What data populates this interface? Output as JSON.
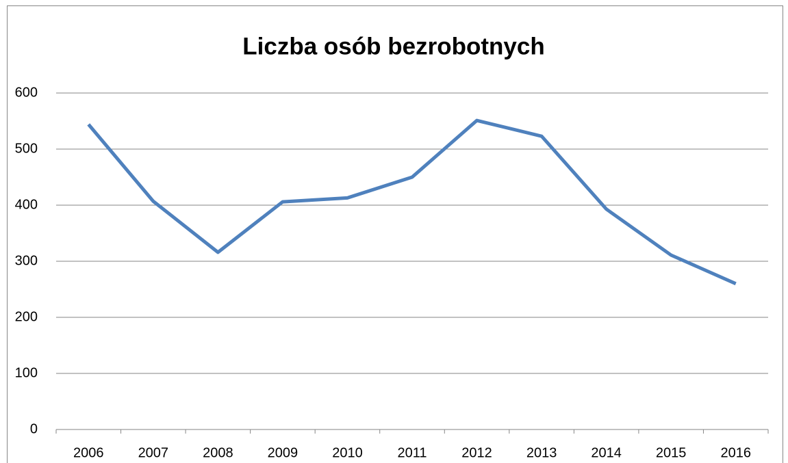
{
  "chart_data": {
    "type": "line",
    "title": "Liczba osób bezrobotnych",
    "categories": [
      "2006",
      "2007",
      "2008",
      "2009",
      "2010",
      "2011",
      "2012",
      "2013",
      "2014",
      "2015",
      "2016"
    ],
    "values": [
      544,
      407,
      316,
      406,
      413,
      450,
      551,
      523,
      393,
      311,
      260
    ],
    "color": "#4f81bd",
    "ylim": [
      0,
      600
    ],
    "yticks": [
      0,
      100,
      200,
      300,
      400,
      500,
      600
    ],
    "grid": true
  }
}
